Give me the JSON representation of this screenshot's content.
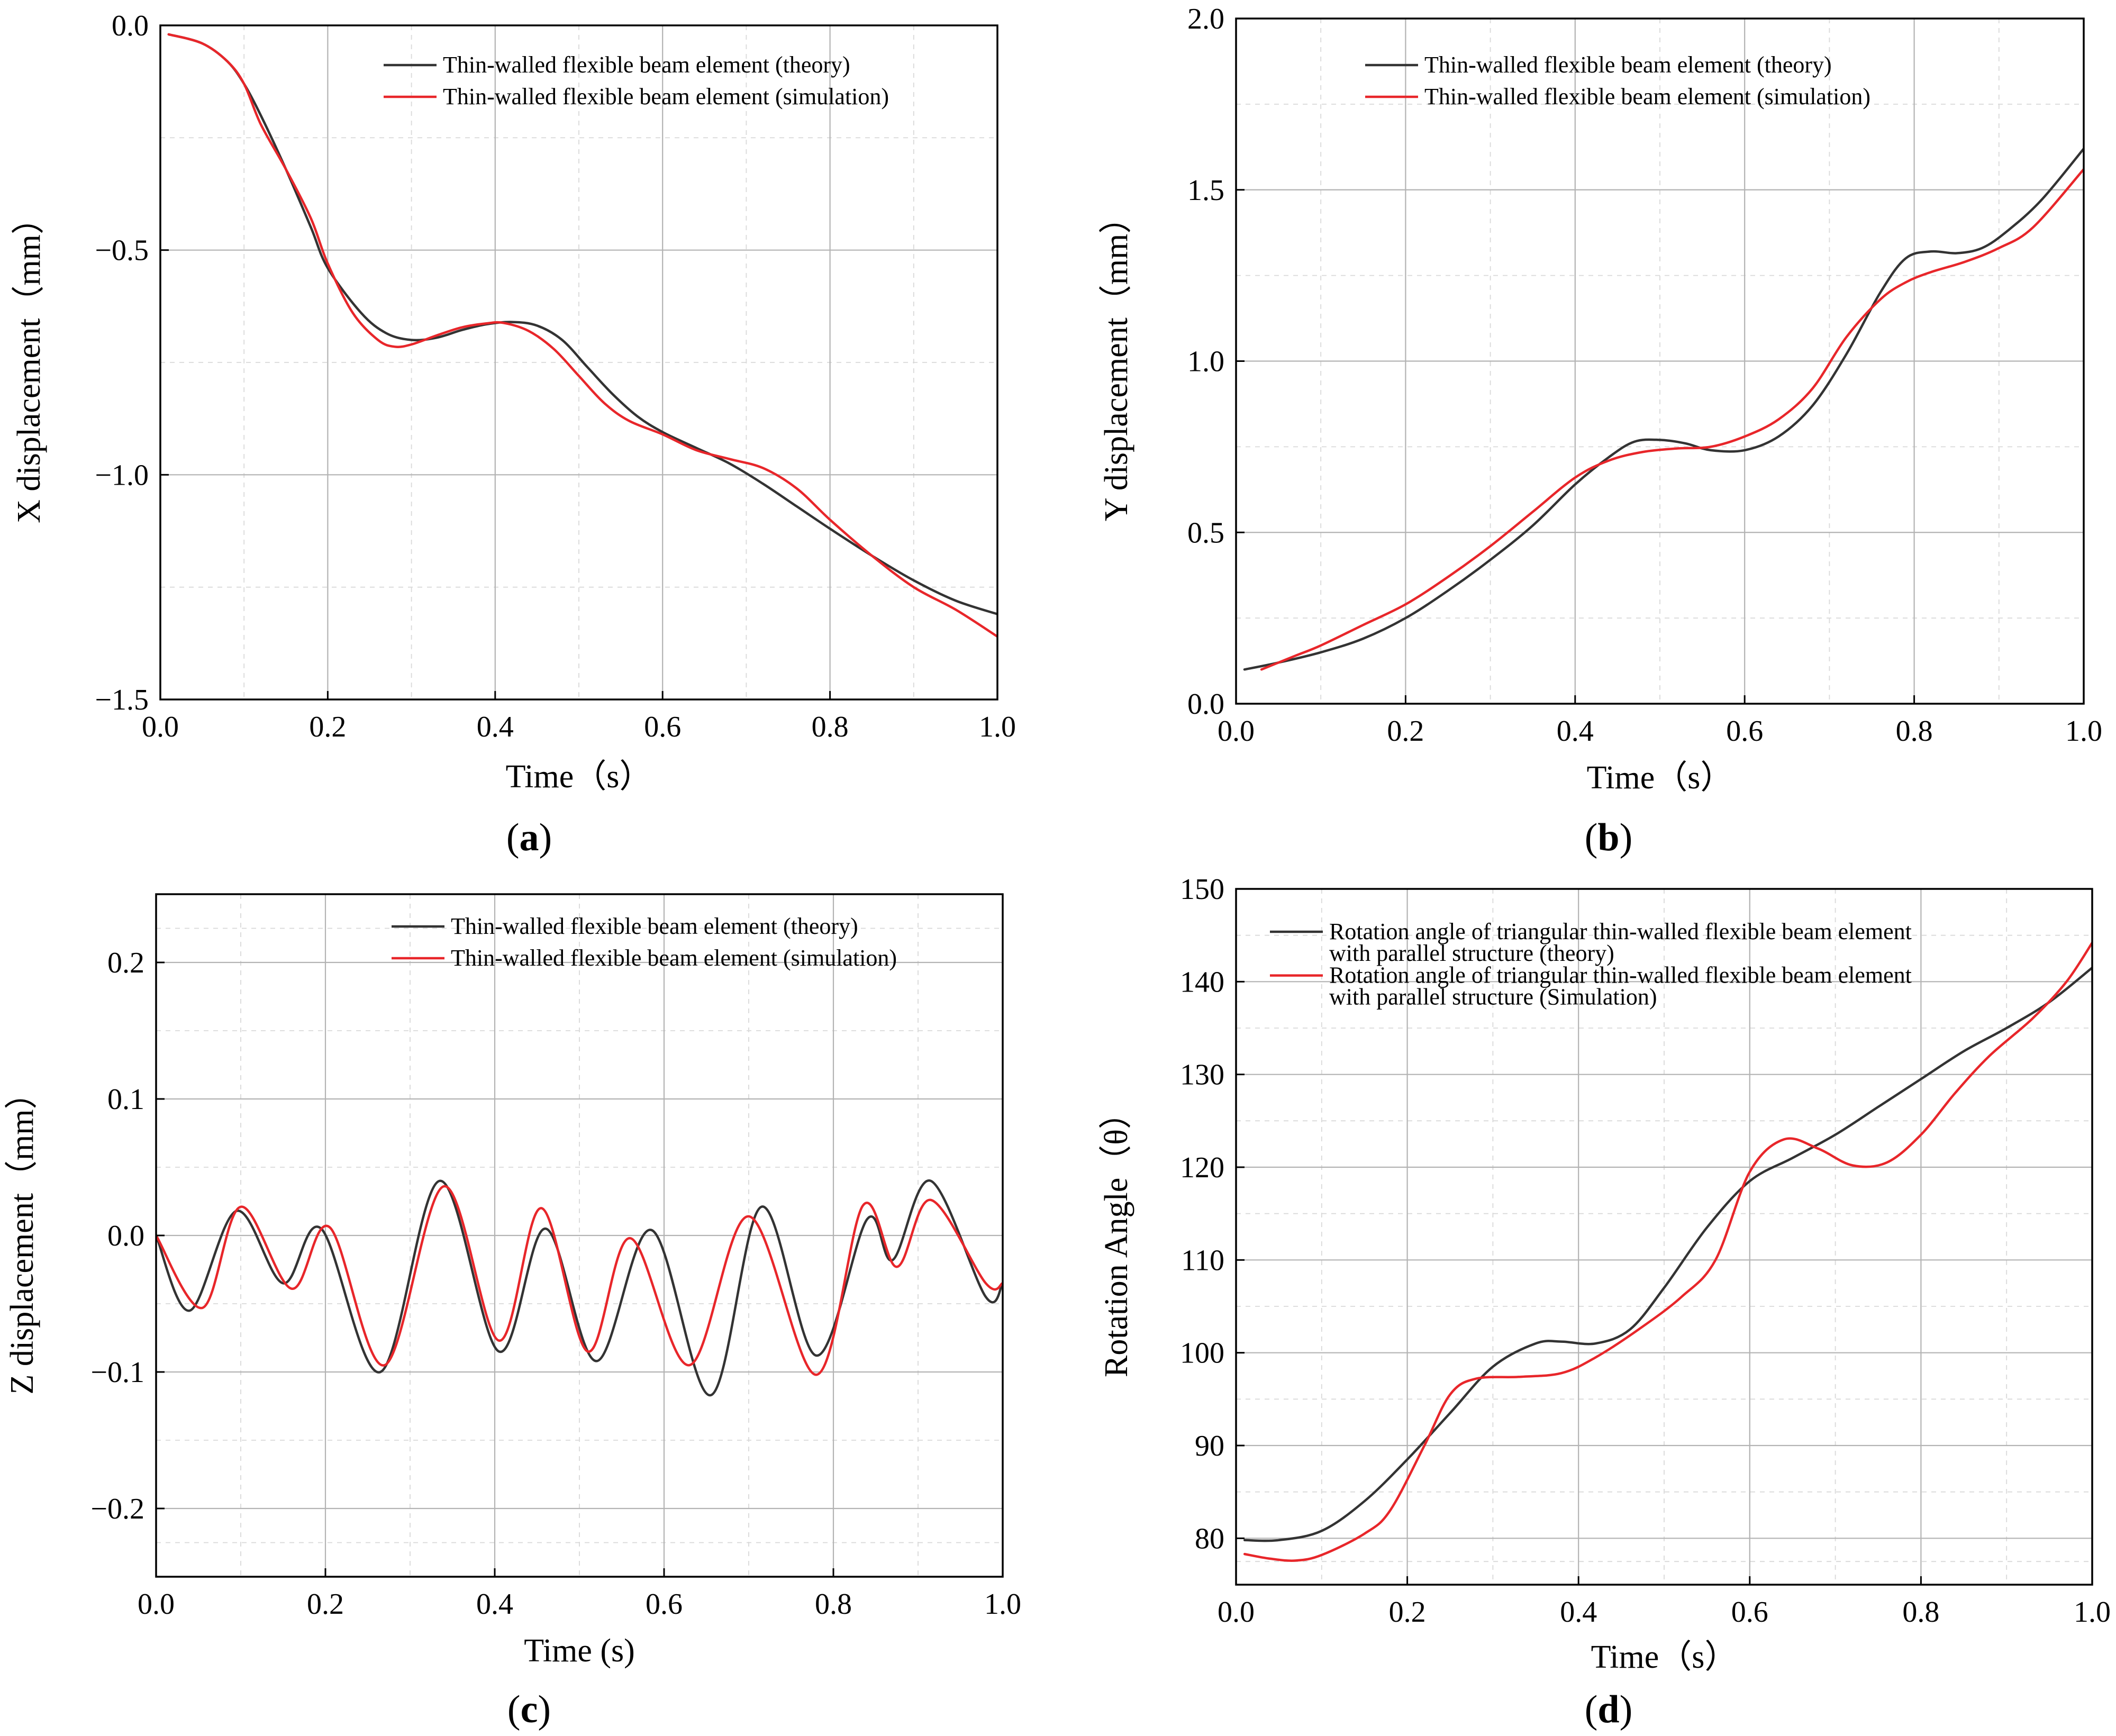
{
  "colors": {
    "theory": "#333333",
    "simulation": "#e8262a"
  },
  "panels": [
    {
      "label": "(a)",
      "letter": "a"
    },
    {
      "label": "(b)",
      "letter": "b"
    },
    {
      "label": "(c)",
      "letter": "c"
    },
    {
      "label": "(d)",
      "letter": "d"
    }
  ],
  "chart_data": [
    {
      "id": "a",
      "type": "line",
      "panel_label": "(a)",
      "xlabel": "Time（s）",
      "ylabel": "X displacement（mm）",
      "xlim": [
        0,
        1.0
      ],
      "ylim": [
        -1.5,
        0
      ],
      "xticks": [
        0,
        0.2,
        0.4,
        0.6,
        0.8,
        1.0
      ],
      "xtick_labels": [
        "0.0",
        "0.2",
        "0.4",
        "0.6",
        "0.8",
        "1.0"
      ],
      "yticks": [
        -1.5,
        -1.0,
        -0.5,
        0
      ],
      "ytick_labels": [
        "−1.5",
        "−1.0",
        "−0.5",
        "0.0"
      ],
      "legend_position": "top-right",
      "series": [
        {
          "name": "Thin-walled flexible beam element (theory)",
          "color_key": "theory",
          "x": [
            0.01,
            0.05,
            0.08,
            0.1,
            0.12,
            0.15,
            0.18,
            0.2,
            0.24,
            0.27,
            0.3,
            0.33,
            0.36,
            0.39,
            0.42,
            0.45,
            0.48,
            0.51,
            0.54,
            0.57,
            0.6,
            0.64,
            0.68,
            0.72,
            0.76,
            0.8,
            0.85,
            0.9,
            0.95,
            1.0
          ],
          "values": [
            -0.02,
            -0.04,
            -0.08,
            -0.13,
            -0.2,
            -0.32,
            -0.45,
            -0.54,
            -0.64,
            -0.685,
            -0.7,
            -0.695,
            -0.678,
            -0.665,
            -0.66,
            -0.668,
            -0.7,
            -0.76,
            -0.82,
            -0.87,
            -0.905,
            -0.94,
            -0.975,
            -1.02,
            -1.07,
            -1.12,
            -1.18,
            -1.235,
            -1.28,
            -1.31
          ]
        },
        {
          "name": "Thin-walled flexible beam element (simulation)",
          "color_key": "simulation",
          "x": [
            0.01,
            0.05,
            0.08,
            0.1,
            0.12,
            0.15,
            0.18,
            0.2,
            0.23,
            0.26,
            0.28,
            0.3,
            0.33,
            0.36,
            0.39,
            0.41,
            0.44,
            0.47,
            0.5,
            0.53,
            0.56,
            0.6,
            0.64,
            0.68,
            0.72,
            0.76,
            0.8,
            0.85,
            0.9,
            0.95,
            1.0
          ],
          "values": [
            -0.02,
            -0.04,
            -0.08,
            -0.13,
            -0.22,
            -0.32,
            -0.43,
            -0.53,
            -0.64,
            -0.7,
            -0.715,
            -0.71,
            -0.69,
            -0.672,
            -0.663,
            -0.662,
            -0.68,
            -0.72,
            -0.78,
            -0.84,
            -0.88,
            -0.91,
            -0.945,
            -0.965,
            -0.985,
            -1.03,
            -1.1,
            -1.18,
            -1.25,
            -1.3,
            -1.36
          ]
        }
      ]
    },
    {
      "id": "b",
      "type": "line",
      "panel_label": "(b)",
      "xlabel": "Time（s）",
      "ylabel": "Y displacement（mm）",
      "xlim": [
        0,
        1.0
      ],
      "ylim": [
        0,
        2.0
      ],
      "xticks": [
        0,
        0.2,
        0.4,
        0.6,
        0.8,
        1.0
      ],
      "xtick_labels": [
        "0.0",
        "0.2",
        "0.4",
        "0.6",
        "0.8",
        "1.0"
      ],
      "yticks": [
        0,
        0.5,
        1.0,
        1.5,
        2.0
      ],
      "ytick_labels": [
        "0.0",
        "0.5",
        "1.0",
        "1.5",
        "2.0"
      ],
      "legend_position": "top-right",
      "series": [
        {
          "name": "Thin-walled flexible beam element (theory)",
          "color_key": "theory",
          "x": [
            0.01,
            0.05,
            0.1,
            0.15,
            0.2,
            0.25,
            0.3,
            0.35,
            0.4,
            0.44,
            0.47,
            0.5,
            0.53,
            0.56,
            0.6,
            0.64,
            0.68,
            0.72,
            0.76,
            0.79,
            0.82,
            0.85,
            0.88,
            0.91,
            0.95,
            1.0
          ],
          "values": [
            0.1,
            0.12,
            0.15,
            0.19,
            0.25,
            0.33,
            0.42,
            0.52,
            0.64,
            0.72,
            0.765,
            0.77,
            0.76,
            0.74,
            0.74,
            0.78,
            0.87,
            1.02,
            1.2,
            1.3,
            1.32,
            1.315,
            1.33,
            1.38,
            1.47,
            1.62
          ]
        },
        {
          "name": "Thin-walled flexible beam element (simulation)",
          "color_key": "simulation",
          "x": [
            0.03,
            0.07,
            0.1,
            0.15,
            0.2,
            0.25,
            0.3,
            0.35,
            0.4,
            0.44,
            0.48,
            0.52,
            0.56,
            0.6,
            0.64,
            0.68,
            0.72,
            0.76,
            0.79,
            0.82,
            0.86,
            0.9,
            0.94,
            1.0
          ],
          "values": [
            0.1,
            0.14,
            0.17,
            0.23,
            0.29,
            0.37,
            0.46,
            0.56,
            0.66,
            0.71,
            0.735,
            0.745,
            0.75,
            0.78,
            0.83,
            0.92,
            1.07,
            1.18,
            1.23,
            1.26,
            1.29,
            1.33,
            1.39,
            1.56
          ]
        }
      ]
    },
    {
      "id": "c",
      "type": "line",
      "panel_label": "(c)",
      "xlabel": "Time (s)",
      "ylabel": "Z displacement（mm）",
      "xlim": [
        0,
        1.0
      ],
      "ylim": [
        -0.25,
        0.25
      ],
      "xticks": [
        0,
        0.2,
        0.4,
        0.6,
        0.8,
        1.0
      ],
      "xtick_labels": [
        "0.0",
        "0.2",
        "0.4",
        "0.6",
        "0.8",
        "1.0"
      ],
      "yticks": [
        -0.2,
        -0.1,
        0,
        0.1,
        0.2
      ],
      "ytick_labels": [
        "−0.2",
        "−0.1",
        "0.0",
        "0.1",
        "0.2"
      ],
      "legend_position": "top-right",
      "series": [
        {
          "name": "Thin-walled flexible beam element (theory)",
          "color_key": "theory",
          "x": [
            0,
            0.04,
            0.095,
            0.15,
            0.195,
            0.265,
            0.335,
            0.405,
            0.46,
            0.52,
            0.585,
            0.655,
            0.715,
            0.78,
            0.84,
            0.87,
            0.915,
            0.98,
            1.0
          ],
          "values": [
            0,
            -0.055,
            0.018,
            -0.035,
            0.005,
            -0.1,
            0.04,
            -0.085,
            0.005,
            -0.092,
            0.004,
            -0.117,
            0.021,
            -0.088,
            0.012,
            -0.018,
            0.04,
            -0.045,
            -0.035
          ]
        },
        {
          "name": "Thin-walled flexible beam element (simulation)",
          "color_key": "simulation",
          "x": [
            0,
            0.055,
            0.1,
            0.16,
            0.205,
            0.27,
            0.34,
            0.405,
            0.455,
            0.51,
            0.56,
            0.63,
            0.7,
            0.78,
            0.835,
            0.875,
            0.915,
            0.98,
            1.0
          ],
          "values": [
            0,
            -0.053,
            0.021,
            -0.039,
            0.006,
            -0.095,
            0.036,
            -0.077,
            0.02,
            -0.085,
            -0.002,
            -0.095,
            0.014,
            -0.102,
            0.022,
            -0.023,
            0.026,
            -0.035,
            -0.035
          ]
        }
      ]
    },
    {
      "id": "d",
      "type": "line",
      "panel_label": "(d)",
      "xlabel": "Time（s）",
      "ylabel": "Rotation Angle（θ）",
      "xlim": [
        0,
        1.0
      ],
      "ylim": [
        75,
        150
      ],
      "xticks": [
        0,
        0.2,
        0.4,
        0.6,
        0.8,
        1.0
      ],
      "xtick_labels": [
        "0.0",
        "0.2",
        "0.4",
        "0.6",
        "0.8",
        "1.0"
      ],
      "yticks": [
        80,
        90,
        100,
        110,
        120,
        130,
        140,
        150
      ],
      "ytick_labels": [
        "80",
        "90",
        "100",
        "110",
        "120",
        "130",
        "140",
        "150"
      ],
      "legend_position": "top-left",
      "series": [
        {
          "name": [
            "Rotation angle of triangular thin-walled flexible beam element",
            "with parallel structure (theory)"
          ],
          "color_key": "theory",
          "x": [
            0.01,
            0.05,
            0.1,
            0.15,
            0.2,
            0.25,
            0.3,
            0.35,
            0.38,
            0.42,
            0.46,
            0.5,
            0.55,
            0.6,
            0.65,
            0.7,
            0.75,
            0.8,
            0.85,
            0.9,
            0.95,
            1.0
          ],
          "values": [
            79.8,
            79.8,
            80.8,
            84,
            88.5,
            93.5,
            98.5,
            101,
            101.2,
            101,
            102.5,
            107,
            113.5,
            118.5,
            121,
            123.5,
            126.5,
            129.5,
            132.5,
            135,
            137.8,
            141.5
          ]
        },
        {
          "name": [
            "Rotation angle of triangular thin-walled flexible beam element",
            "with parallel structure (Simulation)"
          ],
          "color_key": "simulation",
          "x": [
            0.01,
            0.04,
            0.07,
            0.1,
            0.15,
            0.18,
            0.22,
            0.25,
            0.28,
            0.33,
            0.38,
            0.42,
            0.47,
            0.52,
            0.56,
            0.6,
            0.64,
            0.68,
            0.72,
            0.76,
            0.8,
            0.84,
            0.88,
            0.93,
            0.97,
            1.0
          ],
          "values": [
            78.3,
            77.8,
            77.6,
            78.2,
            80.5,
            83,
            90,
            95.5,
            97.2,
            97.4,
            97.8,
            99.5,
            102.5,
            106,
            110,
            119.5,
            123,
            122,
            120.2,
            120.5,
            123.5,
            128,
            132,
            136,
            140,
            144.2
          ]
        }
      ]
    }
  ]
}
